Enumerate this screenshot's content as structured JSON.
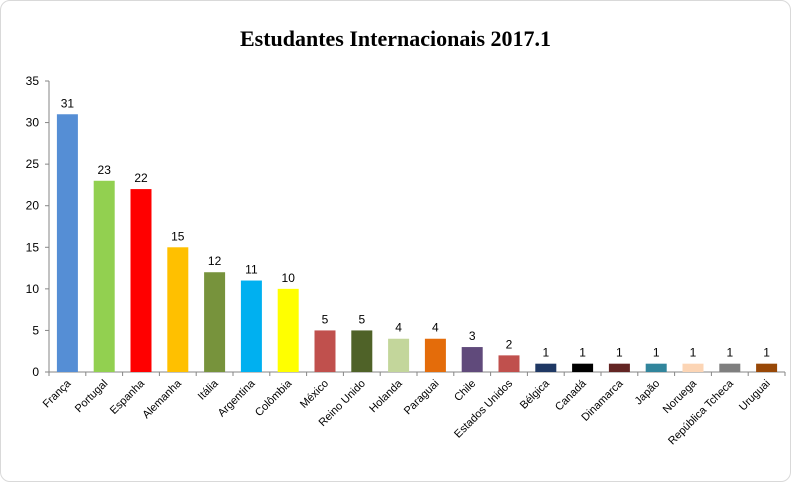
{
  "chart_data": {
    "type": "bar",
    "title": "Estudantes Internacionais 2017.1",
    "xlabel": "",
    "ylabel": "",
    "ylim": [
      0,
      35
    ],
    "yticks": [
      0,
      5,
      10,
      15,
      20,
      25,
      30,
      35
    ],
    "grid": false,
    "legend": "none",
    "categories": [
      "França",
      "Portugal",
      "Espanha",
      "Alemanha",
      "Itália",
      "Argentina",
      "Colômbia",
      "México",
      "Reino Unido",
      "Holanda",
      "Paraguai",
      "Chile",
      "Estados Unidos",
      "Bélgica",
      "Canadá",
      "Dinamarca",
      "Japão",
      "Noruega",
      "República Tcheca",
      "Uruguai"
    ],
    "values": [
      31,
      23,
      22,
      15,
      12,
      11,
      10,
      5,
      5,
      4,
      4,
      3,
      2,
      1,
      1,
      1,
      1,
      1,
      1,
      1
    ],
    "colors": [
      "#558ed5",
      "#92d050",
      "#ff0000",
      "#ffc000",
      "#77933c",
      "#00b0f0",
      "#ffff00",
      "#c0504d",
      "#4f6228",
      "#c3d69b",
      "#e46c0a",
      "#604a7b",
      "#c0504d",
      "#1f3864",
      "#000000",
      "#632523",
      "#31859c",
      "#fcd5b5",
      "#7f7f7f",
      "#984807"
    ]
  }
}
